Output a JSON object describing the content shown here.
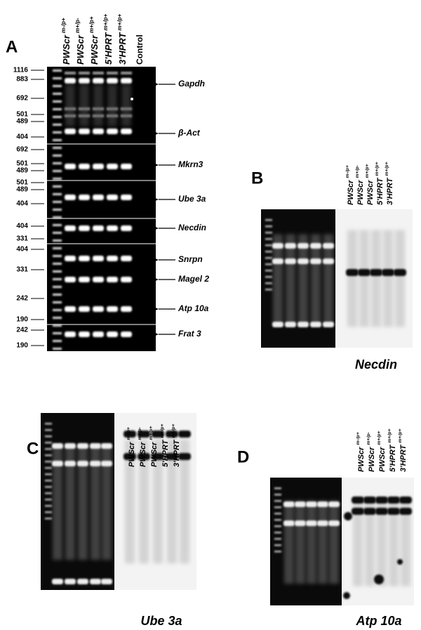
{
  "panel_a": {
    "letter": "A",
    "lanes": [
      {
        "name": "PWScr",
        "sup": "m-/p+"
      },
      {
        "name": "PWScr",
        "sup": "m+/p-"
      },
      {
        "name": "PWScr",
        "sup": "m+/p+"
      },
      {
        "name": "5'HPRT",
        "sup": "m+/p+"
      },
      {
        "name": "3'HPRT",
        "sup": "m+/p+"
      }
    ],
    "control": "Control",
    "markers": [
      "1116",
      "883",
      "692",
      "501",
      "489",
      "404",
      "692",
      "501",
      "489",
      "501",
      "489",
      "404",
      "404",
      "331",
      "404",
      "331",
      "242",
      "190",
      "242",
      "190"
    ],
    "genes": [
      "Gapdh",
      "β-Act",
      "Mkrn3",
      "Ube 3a",
      "Necdin",
      "Snrpn",
      "Magel 2",
      "Atp 10a",
      "Frat 3"
    ]
  },
  "panel_b": {
    "letter": "B",
    "lanes": [
      {
        "name": "PWScr",
        "sup": "m-/p+"
      },
      {
        "name": "PWScr",
        "sup": "m+/p-"
      },
      {
        "name": "PWScr",
        "sup": "m+/p+"
      },
      {
        "name": "5'HPRT",
        "sup": "m+/p+"
      },
      {
        "name": "3'HPRT",
        "sup": "m+/p+"
      }
    ],
    "caption": "Necdin"
  },
  "panel_c": {
    "letter": "C",
    "lanes": [
      {
        "name": "PWScr",
        "sup": "m-/p+"
      },
      {
        "name": "PWScr",
        "sup": "m+/p-"
      },
      {
        "name": "PWScr",
        "sup": "m+/p+"
      },
      {
        "name": "5'HPRT",
        "sup": "m+/p+"
      },
      {
        "name": "3'HPRT",
        "sup": "m+/p+"
      }
    ],
    "caption": "Ube 3a"
  },
  "panel_d": {
    "letter": "D",
    "lanes": [
      {
        "name": "PWScr",
        "sup": "m-/p+"
      },
      {
        "name": "PWScr",
        "sup": "m+/p-"
      },
      {
        "name": "PWScr",
        "sup": "m+/p+"
      },
      {
        "name": "5'HPRT",
        "sup": "m+/p+"
      },
      {
        "name": "3'HPRT",
        "sup": "m+/p+"
      }
    ],
    "caption": "Atp 10a"
  }
}
